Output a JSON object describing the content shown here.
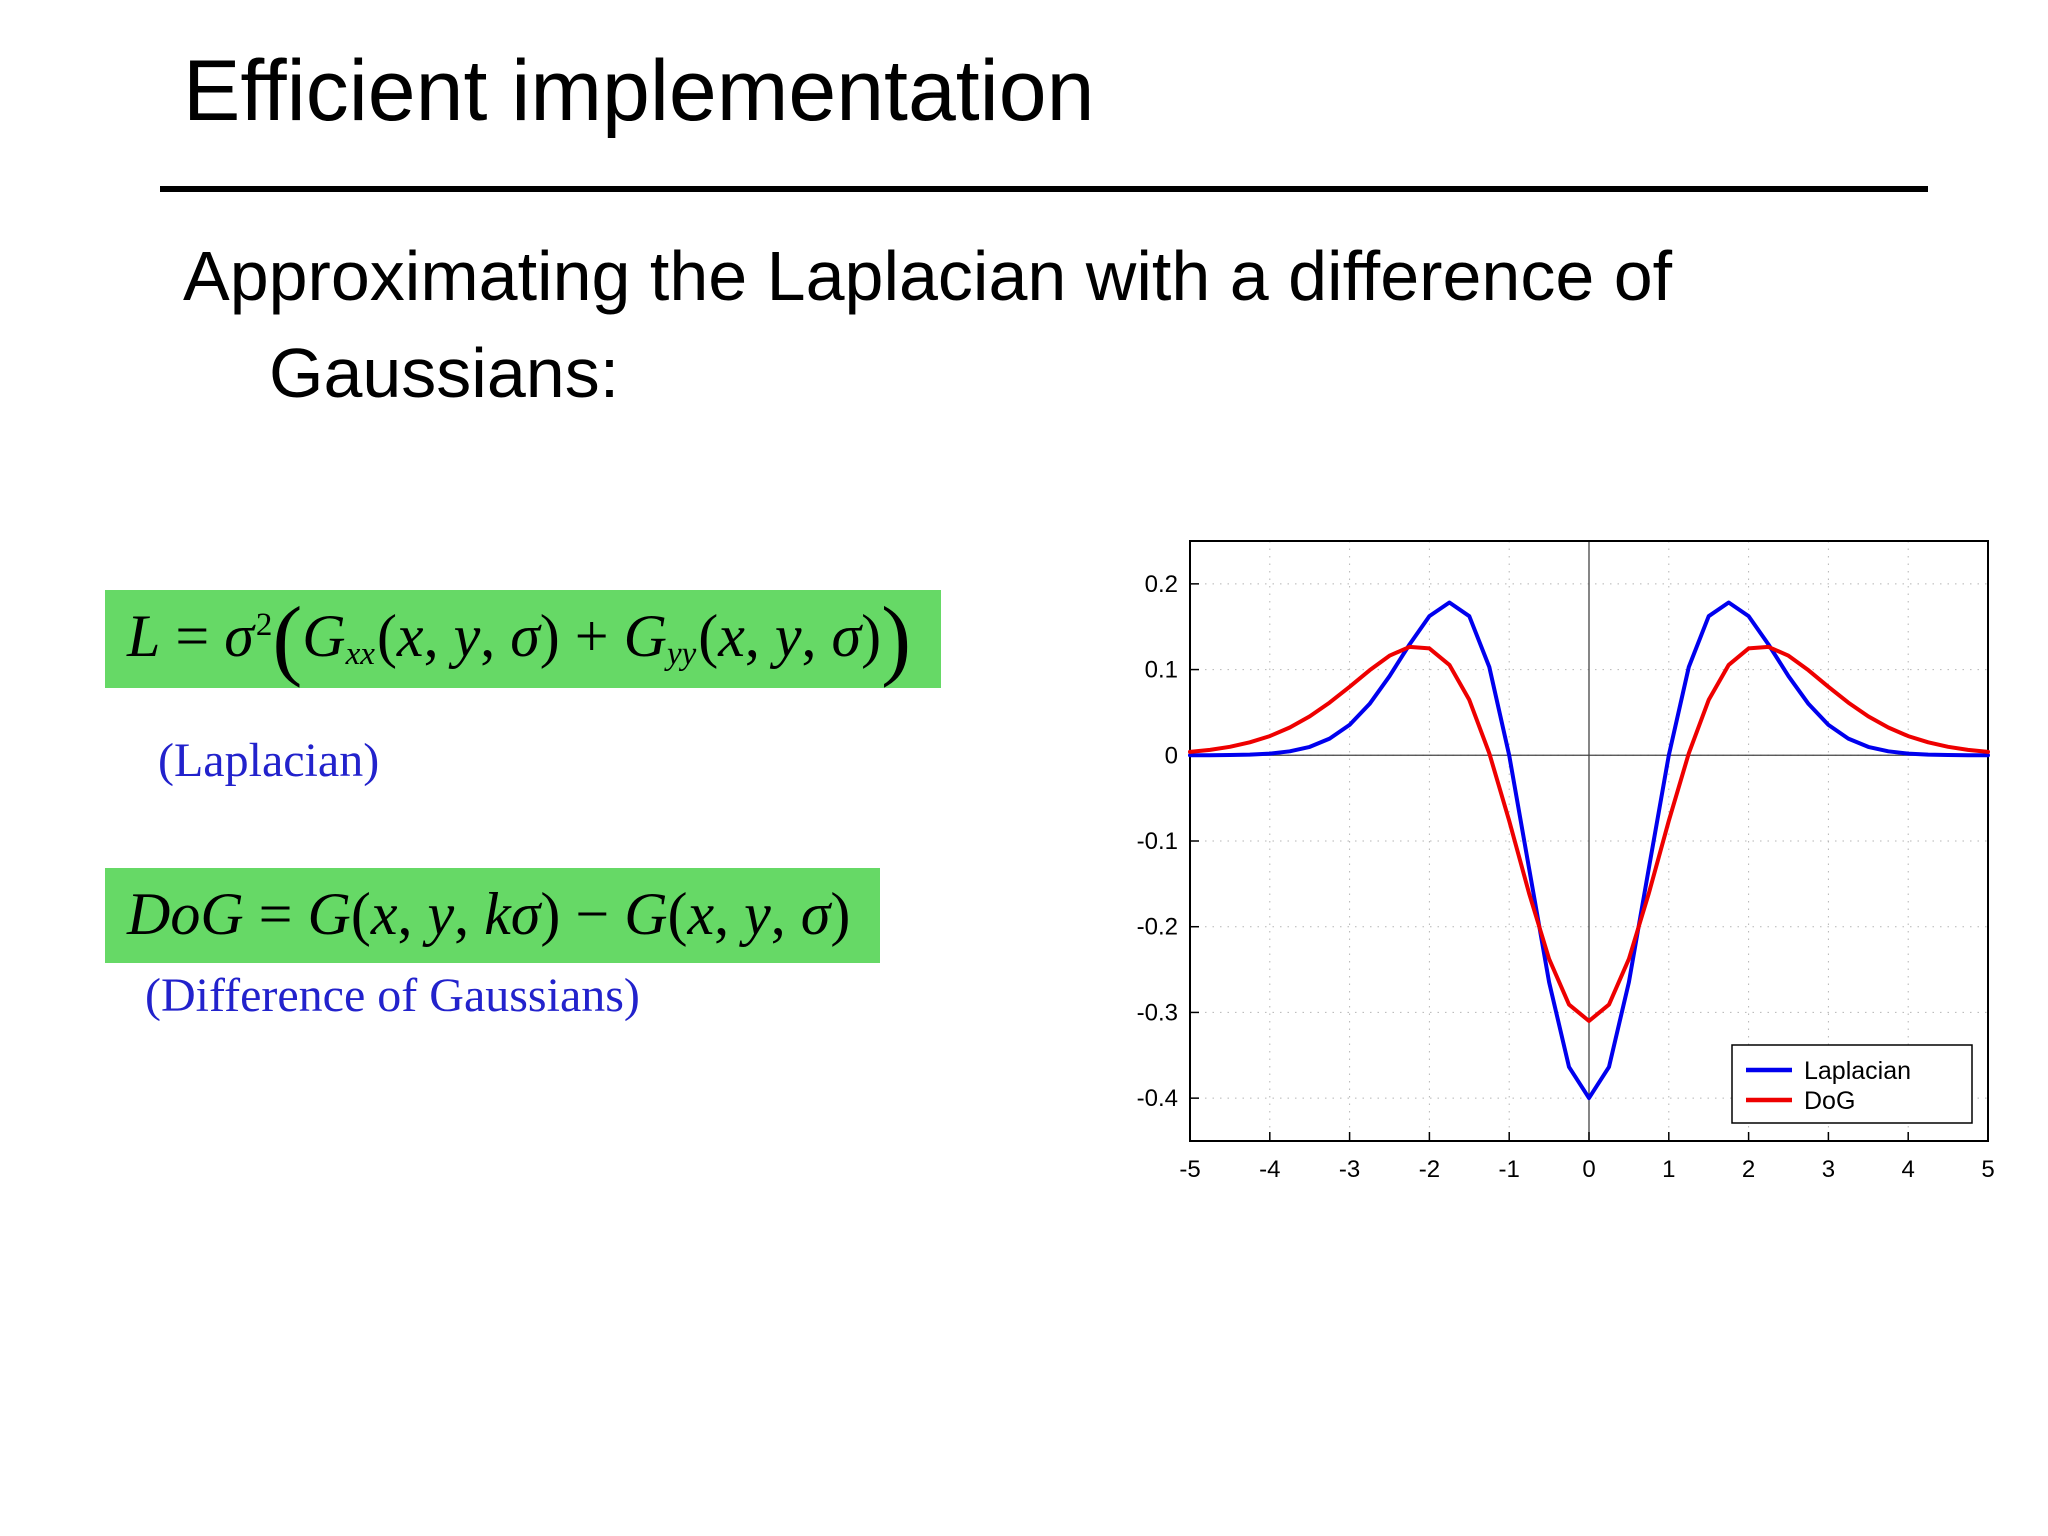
{
  "slide": {
    "title": "Efficient implementation",
    "subtitle_line1": "Approximating the Laplacian with a difference of",
    "subtitle_line2": "Gaussians:",
    "caption_laplacian": "(Laplacian)",
    "caption_dog": "(Difference of Gaussians)",
    "highlight_color": "#66d966",
    "caption_color": "#2222cc"
  },
  "formulas": {
    "laplacian": {
      "plain": "L = σ²( Gxx(x, y, σ) + Gyy(x, y, σ) )",
      "segments": [
        {
          "t": "L",
          "k": "i"
        },
        {
          "t": " = ",
          "k": "n"
        },
        {
          "t": "σ",
          "k": "i"
        },
        {
          "t": "2",
          "k": "sup"
        },
        {
          "t": "(",
          "k": "big"
        },
        {
          "t": "G",
          "k": "i"
        },
        {
          "t": "xx",
          "k": "sub"
        },
        {
          "t": "(",
          "k": "n"
        },
        {
          "t": "x",
          "k": "i"
        },
        {
          "t": ", ",
          "k": "n"
        },
        {
          "t": "y",
          "k": "i"
        },
        {
          "t": ", ",
          "k": "n"
        },
        {
          "t": "σ",
          "k": "i"
        },
        {
          "t": ")",
          "k": "n"
        },
        {
          "t": " + ",
          "k": "n"
        },
        {
          "t": "G",
          "k": "i"
        },
        {
          "t": "yy",
          "k": "sub"
        },
        {
          "t": "(",
          "k": "n"
        },
        {
          "t": "x",
          "k": "i"
        },
        {
          "t": ", ",
          "k": "n"
        },
        {
          "t": "y",
          "k": "i"
        },
        {
          "t": ", ",
          "k": "n"
        },
        {
          "t": "σ",
          "k": "i"
        },
        {
          "t": ")",
          "k": "n"
        },
        {
          "t": ")",
          "k": "big"
        }
      ]
    },
    "dog": {
      "plain": "DoG = G(x, y, kσ) − G(x, y, σ)",
      "segments": [
        {
          "t": "DoG",
          "k": "i"
        },
        {
          "t": " = ",
          "k": "n"
        },
        {
          "t": "G",
          "k": "i"
        },
        {
          "t": "(",
          "k": "n"
        },
        {
          "t": "x",
          "k": "i"
        },
        {
          "t": ", ",
          "k": "n"
        },
        {
          "t": "y",
          "k": "i"
        },
        {
          "t": ", ",
          "k": "n"
        },
        {
          "t": "k",
          "k": "i"
        },
        {
          "t": "σ",
          "k": "i"
        },
        {
          "t": ") − ",
          "k": "n"
        },
        {
          "t": "G",
          "k": "i"
        },
        {
          "t": "(",
          "k": "n"
        },
        {
          "t": "x",
          "k": "i"
        },
        {
          "t": ", ",
          "k": "n"
        },
        {
          "t": "y",
          "k": "i"
        },
        {
          "t": ", ",
          "k": "n"
        },
        {
          "t": "σ",
          "k": "i"
        },
        {
          "t": ")",
          "k": "n"
        }
      ]
    }
  },
  "chart_data": {
    "type": "line",
    "title": "",
    "xlabel": "",
    "ylabel": "",
    "xlim": [
      -5,
      5
    ],
    "ylim": [
      -0.45,
      0.25
    ],
    "xticks": [
      -5,
      -4,
      -3,
      -2,
      -1,
      0,
      1,
      2,
      3,
      4,
      5
    ],
    "yticks": [
      0.2,
      0.1,
      0,
      -0.1,
      -0.2,
      -0.3,
      -0.4
    ],
    "grid": true,
    "legend_position": "lower right",
    "legend": [
      "Laplacian",
      "DoG"
    ],
    "x": [
      -5,
      -4.75,
      -4.5,
      -4.25,
      -4,
      -3.75,
      -3.5,
      -3.25,
      -3,
      -2.75,
      -2.5,
      -2.25,
      -2,
      -1.75,
      -1.5,
      -1.25,
      -1,
      -0.75,
      -0.5,
      -0.25,
      0,
      0.25,
      0.5,
      0.75,
      1,
      1.25,
      1.5,
      1.75,
      2,
      2.25,
      2.5,
      2.75,
      3,
      3.25,
      3.5,
      3.75,
      4,
      4.25,
      4.5,
      4.75,
      5
    ],
    "series": [
      {
        "name": "Laplacian",
        "color": "#0000ee",
        "y": [
          0,
          0.0001,
          0.0003,
          0.0008,
          0.002,
          0.0046,
          0.0098,
          0.0195,
          0.0355,
          0.0599,
          0.0923,
          0.1293,
          0.1624,
          0.1783,
          0.1623,
          0.103,
          0,
          -0.1321,
          -0.2647,
          -0.3635,
          -0.4,
          -0.3635,
          -0.2647,
          -0.1321,
          0,
          0.103,
          0.1623,
          0.1783,
          0.1624,
          0.1293,
          0.0923,
          0.0599,
          0.0355,
          0.0195,
          0.0098,
          0.0046,
          0.002,
          0.0008,
          0.0003,
          0.0001,
          0
        ]
      },
      {
        "name": "DoG",
        "color": "#ee0000",
        "y": [
          0.0039,
          0.0063,
          0.0099,
          0.0151,
          0.0224,
          0.0324,
          0.0454,
          0.0615,
          0.0799,
          0.0991,
          0.1162,
          0.1265,
          0.1247,
          0.1054,
          0.0646,
          0.0023,
          -0.0764,
          -0.1611,
          -0.2375,
          -0.2909,
          -0.31,
          -0.2909,
          -0.2375,
          -0.1611,
          -0.0764,
          0.0023,
          0.0646,
          0.1054,
          0.1247,
          0.1265,
          0.1162,
          0.0991,
          0.0799,
          0.0615,
          0.0454,
          0.0324,
          0.0224,
          0.0151,
          0.0099,
          0.0063,
          0.0039
        ]
      }
    ],
    "style": {
      "grid_color": "#b5b5b5",
      "axis_color": "#444444",
      "border_color": "#000000",
      "plot_bg": "#ffffff"
    }
  }
}
